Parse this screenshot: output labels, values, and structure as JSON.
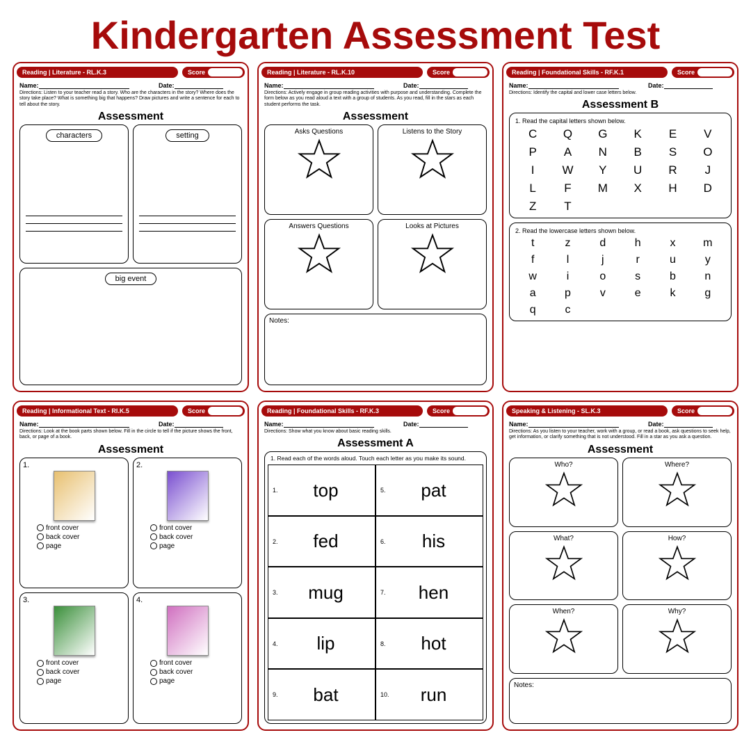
{
  "colors": {
    "accent": "#a60b0b",
    "text": "#000000",
    "bg": "#ffffff"
  },
  "main_title": "Kindergarten Assessment Test",
  "common": {
    "name_label": "Name:",
    "date_label": "Date:",
    "score_label": "Score",
    "assessment": "Assessment",
    "assessment_a": "Assessment A",
    "assessment_b": "Assessment B",
    "notes": "Notes:"
  },
  "cards": {
    "rlk3": {
      "header": "Reading | Literature - RL.K.3",
      "directions": "Directions: Listen to your teacher read a story. Who are the characters in the story? Where does the story take place? What is something big that happens? Draw pictures and write a sentence for each to tell about the story.",
      "boxes": {
        "a": "characters",
        "b": "setting",
        "c": "big event"
      }
    },
    "rlk10": {
      "header": "Reading | Literature - RL.K.10",
      "directions": "Directions: Actively engage in group reading activities with purpose and understanding. Complete the form below as you read aloud a text with a group of students. As you read, fill in the stars as each student performs the task.",
      "stars": [
        "Asks Questions",
        "Listens to the Story",
        "Answers Questions",
        "Looks at Pictures"
      ]
    },
    "rfk1": {
      "header": "Reading | Foundational Skills - RF.K.1",
      "directions": "Directions: Identify the capital and lower case letters below.",
      "cap_title": "1. Read the capital letters shown below.",
      "caps": [
        "C",
        "Q",
        "G",
        "K",
        "E",
        "V",
        "P",
        "A",
        "N",
        "B",
        "S",
        "O",
        "I",
        "W",
        "Y",
        "U",
        "R",
        "J",
        "L",
        "F",
        "M",
        "X",
        "H",
        "D",
        "Z",
        "T"
      ],
      "low_title": "2. Read the lowercase letters shown below.",
      "lows": [
        "t",
        "z",
        "d",
        "h",
        "x",
        "m",
        "f",
        "l",
        "j",
        "r",
        "u",
        "y",
        "w",
        "i",
        "o",
        "s",
        "b",
        "n",
        "a",
        "p",
        "v",
        "e",
        "k",
        "g",
        "q",
        "c"
      ]
    },
    "rik5": {
      "header": "Reading | Informational Text - RI.K.5",
      "directions": "Directions: Look at the book parts shown below. Fill in the circle to tell if the picture shows the front, back, or page of a book.",
      "options": [
        "front cover",
        "back cover",
        "page"
      ],
      "items": [
        "1.",
        "2.",
        "3.",
        "4."
      ],
      "img_colors": [
        "#e8c070",
        "#7a4fd0",
        "#3a8f3a",
        "#d070c0"
      ]
    },
    "rfk3": {
      "header": "Reading | Foundational Skills - RF.K.3",
      "directions": "Directions: Show what you know about basic reading skills.",
      "table_title": "1. Read each of the words aloud. Touch each letter as you make its sound.",
      "words_l": [
        {
          "n": "1.",
          "w": "top"
        },
        {
          "n": "2.",
          "w": "fed"
        },
        {
          "n": "3.",
          "w": "mug"
        },
        {
          "n": "4.",
          "w": "lip"
        },
        {
          "n": "9.",
          "w": "bat"
        }
      ],
      "words_r": [
        {
          "n": "5.",
          "w": "pat"
        },
        {
          "n": "6.",
          "w": "his"
        },
        {
          "n": "7.",
          "w": "hen"
        },
        {
          "n": "8.",
          "w": "hot"
        },
        {
          "n": "10.",
          "w": "run"
        }
      ]
    },
    "slk3": {
      "header": "Speaking & Listening - SL.K.3",
      "directions": "Directions: As you listen to your teacher, work with a group, or read a book, ask questions to seek help, get information, or clarify something that is not understood. Fill in a star as you ask a question.",
      "q": [
        "Who?",
        "Where?",
        "What?",
        "How?",
        "When?",
        "Why?"
      ]
    }
  }
}
